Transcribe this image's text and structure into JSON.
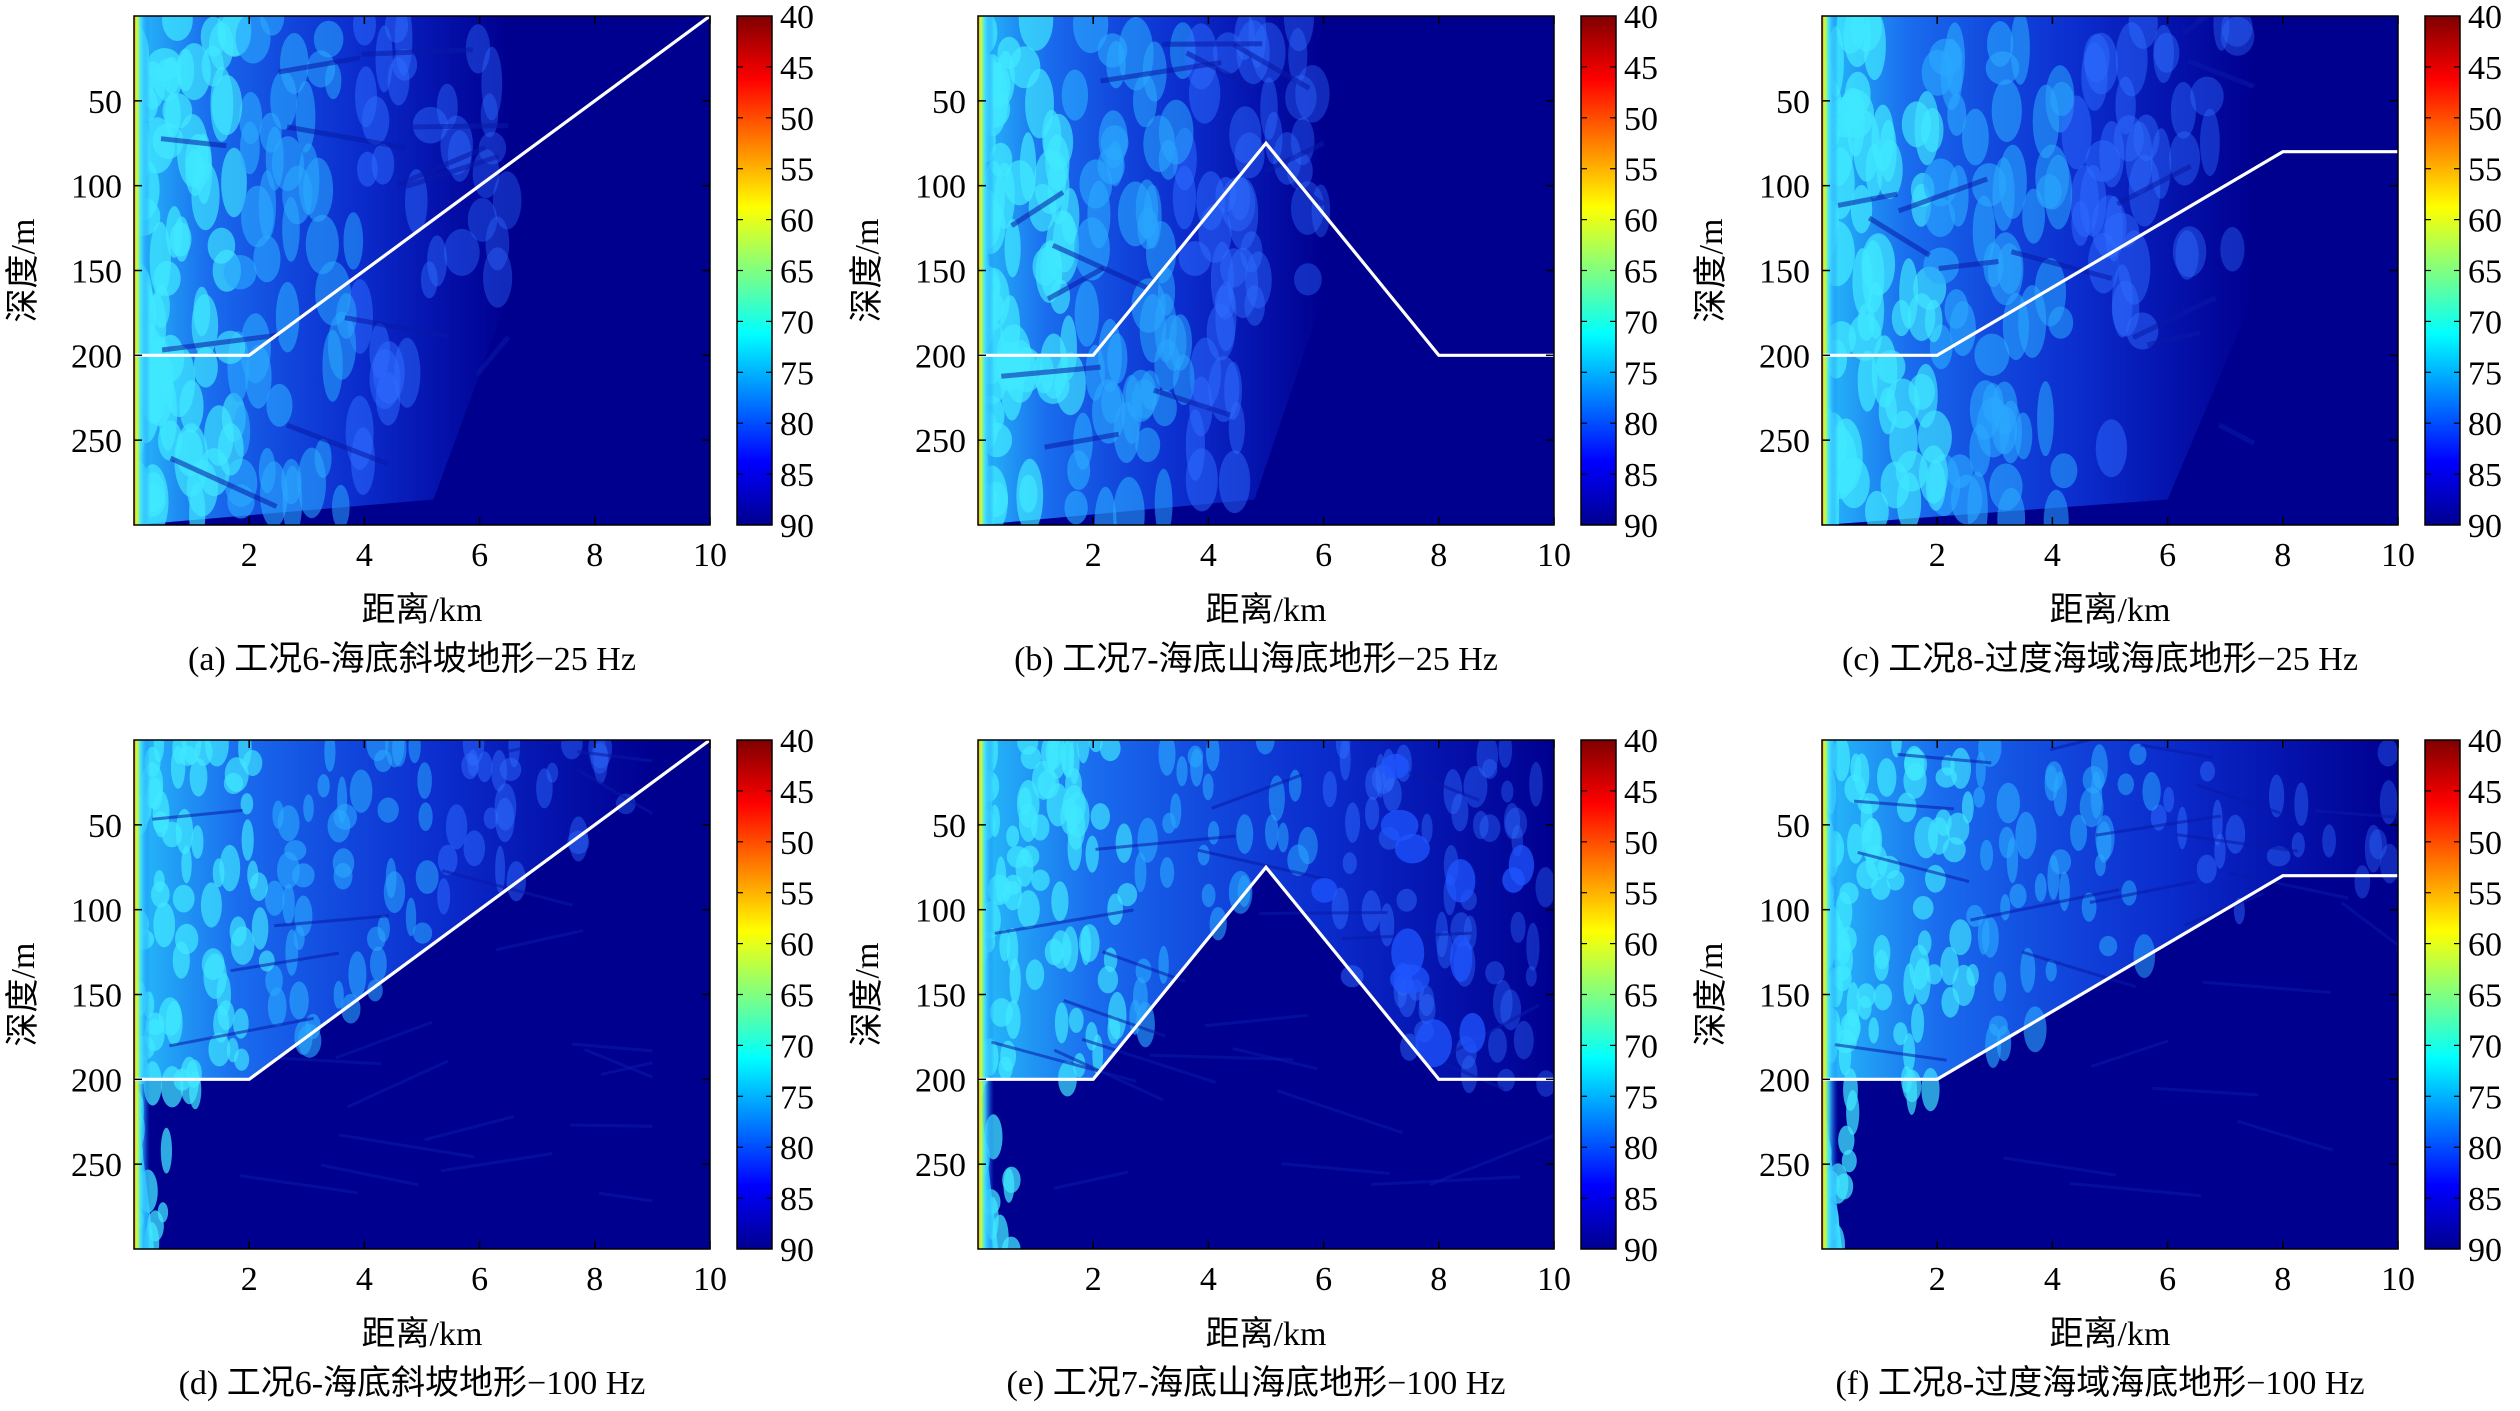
{
  "colorbar": {
    "ticks": [
      "40",
      "45",
      "50",
      "55",
      "60",
      "65",
      "70",
      "75",
      "80",
      "85",
      "90"
    ],
    "min": 40,
    "max": 90,
    "colors": [
      "#7f0000",
      "#ff0000",
      "#ff8000",
      "#ffff00",
      "#80ff80",
      "#00ffff",
      "#0080ff",
      "#0000ff",
      "#00008f"
    ]
  },
  "chart_data": [
    {
      "type": "heatmap",
      "panel": "a",
      "caption": "(a) 工况6-海底斜坡地形−25 Hz",
      "xlabel": "距离/km",
      "ylabel": "深度/m",
      "xticks": [
        "2",
        "4",
        "6",
        "8",
        "10"
      ],
      "yticks": [
        "50",
        "100",
        "150",
        "200",
        "250"
      ],
      "xlim": [
        0,
        10
      ],
      "ylim": [
        0,
        300
      ],
      "freq": "25 Hz",
      "bathymetry": {
        "x": [
          0,
          2,
          10
        ],
        "y": [
          200,
          200,
          0
        ]
      },
      "energy_extent_km": 6.5
    },
    {
      "type": "heatmap",
      "panel": "b",
      "caption": "(b) 工况7-海底山海底地形−25 Hz",
      "xlabel": "距离/km",
      "ylabel": "深度/m",
      "xticks": [
        "2",
        "4",
        "6",
        "8",
        "10"
      ],
      "yticks": [
        "50",
        "100",
        "150",
        "200",
        "250"
      ],
      "xlim": [
        0,
        10
      ],
      "ylim": [
        0,
        300
      ],
      "freq": "25 Hz",
      "bathymetry": {
        "x": [
          0,
          2,
          5,
          8,
          10
        ],
        "y": [
          200,
          200,
          75,
          200,
          200
        ]
      },
      "energy_extent_km": 6.0
    },
    {
      "type": "heatmap",
      "panel": "c",
      "caption": "(c) 工况8-过度海域海底地形−25 Hz",
      "xlabel": "距离/km",
      "ylabel": "深度/m",
      "xticks": [
        "2",
        "4",
        "6",
        "8",
        "10"
      ],
      "yticks": [
        "50",
        "100",
        "150",
        "200",
        "250"
      ],
      "xlim": [
        0,
        10
      ],
      "ylim": [
        0,
        300
      ],
      "freq": "25 Hz",
      "bathymetry": {
        "x": [
          0,
          2,
          8,
          10
        ],
        "y": [
          200,
          200,
          80,
          80
        ]
      },
      "energy_extent_km": 7.5
    },
    {
      "type": "heatmap",
      "panel": "d",
      "caption": "(d) 工况6-海底斜坡地形−100 Hz",
      "xlabel": "距离/km",
      "ylabel": "深度/m",
      "xticks": [
        "2",
        "4",
        "6",
        "8",
        "10"
      ],
      "yticks": [
        "50",
        "100",
        "150",
        "200",
        "250"
      ],
      "xlim": [
        0,
        10
      ],
      "ylim": [
        0,
        300
      ],
      "freq": "100 Hz",
      "bathymetry": {
        "x": [
          0,
          2,
          10
        ],
        "y": [
          200,
          200,
          0
        ]
      },
      "energy_extent_km": 9.0
    },
    {
      "type": "heatmap",
      "panel": "e",
      "caption": "(e) 工况7-海底山海底地形−100 Hz",
      "xlabel": "距离/km",
      "ylabel": "深度/m",
      "xticks": [
        "2",
        "4",
        "6",
        "8",
        "10"
      ],
      "yticks": [
        "50",
        "100",
        "150",
        "200",
        "250"
      ],
      "xlim": [
        0,
        10
      ],
      "ylim": [
        0,
        300
      ],
      "freq": "100 Hz",
      "bathymetry": {
        "x": [
          0,
          2,
          5,
          8,
          10
        ],
        "y": [
          200,
          200,
          75,
          200,
          200
        ]
      },
      "energy_extent_km": 10.0
    },
    {
      "type": "heatmap",
      "panel": "f",
      "caption": "(f) 工况8-过度海域海底地形−100 Hz",
      "xlabel": "距离/km",
      "ylabel": "深度/m",
      "xticks": [
        "2",
        "4",
        "6",
        "8",
        "10"
      ],
      "yticks": [
        "50",
        "100",
        "150",
        "200",
        "250"
      ],
      "xlim": [
        0,
        10
      ],
      "ylim": [
        0,
        300
      ],
      "freq": "100 Hz",
      "bathymetry": {
        "x": [
          0,
          2,
          8,
          10
        ],
        "y": [
          200,
          200,
          80,
          80
        ]
      },
      "energy_extent_km": 10.0
    }
  ]
}
